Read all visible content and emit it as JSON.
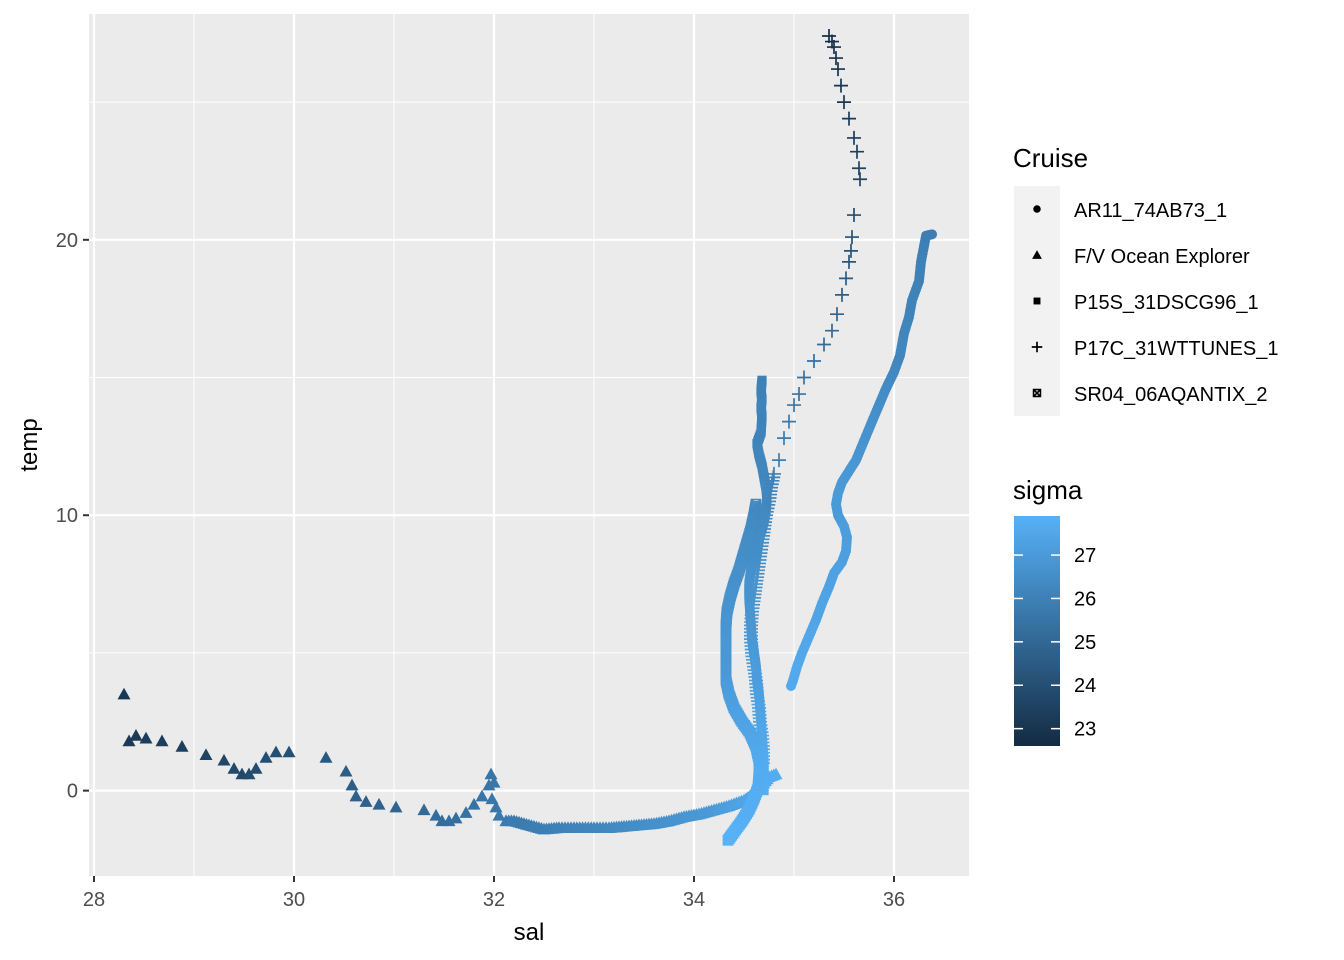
{
  "chart_data": {
    "type": "scatter",
    "title": "",
    "xlabel": "sal",
    "ylabel": "temp",
    "xlim": [
      27.95,
      36.75
    ],
    "ylim": [
      -3.1,
      28.2
    ],
    "x_ticks": [
      28,
      30,
      32,
      34,
      36
    ],
    "y_ticks": [
      0,
      10,
      20
    ],
    "x_tick_labels": [
      "28",
      "30",
      "32",
      "34",
      "36"
    ],
    "y_tick_labels": [
      "0",
      "10",
      "20"
    ],
    "grid": true,
    "shape_legend": {
      "title": "Cruise",
      "entries": [
        {
          "label": "AR11_74AB73_1",
          "shape": "circle"
        },
        {
          "label": "F/V Ocean Explorer",
          "shape": "triangle"
        },
        {
          "label": "P15S_31DSCG96_1",
          "shape": "square"
        },
        {
          "label": "P17C_31WTTUNES_1",
          "shape": "plus"
        },
        {
          "label": "SR04_06AQANTIX_2",
          "shape": "boxed-x"
        }
      ]
    },
    "color_legend": {
      "title": "sigma",
      "min": 22.6,
      "max": 27.9,
      "breaks": [
        23,
        24,
        25,
        26,
        27
      ],
      "break_labels": [
        "23",
        "24",
        "25",
        "26",
        "27"
      ],
      "low_color": "#132B43",
      "high_color": "#56B1F7"
    },
    "series": [
      {
        "name": "AR11_74AB73_1",
        "shape": "circle",
        "points": [
          [
            36.38,
            20.2,
            25.9
          ],
          [
            36.32,
            20.15,
            25.9
          ],
          [
            36.27,
            19.2,
            26.0
          ],
          [
            36.25,
            18.5,
            26.0
          ],
          [
            36.18,
            17.8,
            26.1
          ],
          [
            36.15,
            17.2,
            26.1
          ],
          [
            36.1,
            16.6,
            26.2
          ],
          [
            36.08,
            16.2,
            26.2
          ],
          [
            36.06,
            15.8,
            26.2
          ],
          [
            36.0,
            15.2,
            26.3
          ],
          [
            35.92,
            14.6,
            26.4
          ],
          [
            35.85,
            14.0,
            26.5
          ],
          [
            35.78,
            13.4,
            26.6
          ],
          [
            35.7,
            12.7,
            26.7
          ],
          [
            35.62,
            12.0,
            26.8
          ],
          [
            35.55,
            11.6,
            26.9
          ],
          [
            35.48,
            11.2,
            26.9
          ],
          [
            35.44,
            10.8,
            27.0
          ],
          [
            35.42,
            10.4,
            27.0
          ],
          [
            35.44,
            10.0,
            27.0
          ],
          [
            35.5,
            9.6,
            27.1
          ],
          [
            35.53,
            9.2,
            27.1
          ],
          [
            35.52,
            8.7,
            27.2
          ],
          [
            35.48,
            8.3,
            27.2
          ],
          [
            35.4,
            7.9,
            27.3
          ],
          [
            35.35,
            7.4,
            27.3
          ],
          [
            35.28,
            6.8,
            27.4
          ],
          [
            35.22,
            6.2,
            27.4
          ],
          [
            35.15,
            5.6,
            27.5
          ],
          [
            35.08,
            5.0,
            27.5
          ],
          [
            35.03,
            4.5,
            27.6
          ],
          [
            34.99,
            4.0,
            27.6
          ],
          [
            34.97,
            3.8,
            27.6
          ]
        ]
      },
      {
        "name": "F/V Ocean Explorer",
        "shape": "triangle",
        "points": [
          [
            28.3,
            3.5,
            23.1
          ],
          [
            28.35,
            1.8,
            23.2
          ],
          [
            28.42,
            2.0,
            23.2
          ],
          [
            28.52,
            1.9,
            23.3
          ],
          [
            28.68,
            1.8,
            23.3
          ],
          [
            28.88,
            1.6,
            23.4
          ],
          [
            29.12,
            1.3,
            23.6
          ],
          [
            29.3,
            1.1,
            23.7
          ],
          [
            29.4,
            0.8,
            23.8
          ],
          [
            29.48,
            0.6,
            23.8
          ],
          [
            29.55,
            0.6,
            23.9
          ],
          [
            29.62,
            0.8,
            23.9
          ],
          [
            29.72,
            1.2,
            24.0
          ],
          [
            29.82,
            1.4,
            24.0
          ],
          [
            29.95,
            1.4,
            24.1
          ],
          [
            30.32,
            1.2,
            24.4
          ],
          [
            30.52,
            0.7,
            24.6
          ],
          [
            30.58,
            0.2,
            24.6
          ],
          [
            30.62,
            -0.2,
            24.7
          ],
          [
            30.72,
            -0.4,
            24.7
          ],
          [
            30.85,
            -0.5,
            24.8
          ],
          [
            31.02,
            -0.6,
            24.9
          ],
          [
            31.3,
            -0.7,
            25.1
          ],
          [
            31.42,
            -0.9,
            25.2
          ],
          [
            31.48,
            -1.1,
            25.2
          ],
          [
            31.55,
            -1.1,
            25.3
          ],
          [
            31.62,
            -1.0,
            25.3
          ],
          [
            31.72,
            -0.8,
            25.4
          ],
          [
            31.8,
            -0.5,
            25.4
          ],
          [
            31.88,
            -0.2,
            25.5
          ],
          [
            31.95,
            0.2,
            25.5
          ],
          [
            31.97,
            0.6,
            25.5
          ],
          [
            32.0,
            0.3,
            25.6
          ],
          [
            31.98,
            -0.3,
            25.6
          ],
          [
            32.02,
            -0.6,
            25.6
          ],
          [
            32.05,
            -0.9,
            25.7
          ],
          [
            32.12,
            -1.1,
            25.7
          ],
          [
            32.2,
            -1.1,
            25.8
          ],
          [
            32.3,
            -1.2,
            25.8
          ],
          [
            32.4,
            -1.3,
            25.9
          ],
          [
            32.5,
            -1.4,
            25.9
          ],
          [
            32.65,
            -1.35,
            26.0
          ],
          [
            32.8,
            -1.35,
            26.1
          ],
          [
            33.0,
            -1.35,
            26.2
          ],
          [
            33.15,
            -1.35,
            26.3
          ],
          [
            33.3,
            -1.3,
            26.4
          ],
          [
            33.45,
            -1.25,
            26.5
          ],
          [
            33.6,
            -1.2,
            26.6
          ],
          [
            33.75,
            -1.1,
            26.7
          ],
          [
            33.9,
            -0.95,
            26.8
          ],
          [
            34.05,
            -0.85,
            26.9
          ],
          [
            34.2,
            -0.7,
            27.0
          ],
          [
            34.35,
            -0.55,
            27.2
          ],
          [
            34.5,
            -0.35,
            27.4
          ],
          [
            34.6,
            -0.1,
            27.5
          ],
          [
            34.68,
            0.2,
            27.6
          ],
          [
            34.75,
            0.5,
            27.7
          ],
          [
            34.82,
            0.6,
            27.7
          ]
        ]
      },
      {
        "name": "P15S_31DSCG96_1",
        "shape": "square",
        "points": [
          [
            34.68,
            14.9,
            26.0
          ],
          [
            34.67,
            14.5,
            26.0
          ],
          [
            34.68,
            14.2,
            26.0
          ],
          [
            34.67,
            13.9,
            26.1
          ],
          [
            34.68,
            13.6,
            26.1
          ],
          [
            34.67,
            13.0,
            26.1
          ],
          [
            34.63,
            12.6,
            26.1
          ],
          [
            34.65,
            12.2,
            26.2
          ],
          [
            34.68,
            11.8,
            26.2
          ],
          [
            34.7,
            11.4,
            26.2
          ],
          [
            34.72,
            11.0,
            26.3
          ],
          [
            34.73,
            10.6,
            26.3
          ],
          [
            34.72,
            10.2,
            26.3
          ],
          [
            34.7,
            9.8,
            26.4
          ],
          [
            34.67,
            9.4,
            26.4
          ],
          [
            34.63,
            9.0,
            26.5
          ],
          [
            34.6,
            8.5,
            26.5
          ],
          [
            34.57,
            8.0,
            26.6
          ],
          [
            34.55,
            7.5,
            26.7
          ],
          [
            34.55,
            7.0,
            26.7
          ],
          [
            34.56,
            6.5,
            26.8
          ],
          [
            34.57,
            6.0,
            26.8
          ],
          [
            34.58,
            5.5,
            26.9
          ],
          [
            34.6,
            5.0,
            26.9
          ],
          [
            34.62,
            4.5,
            27.0
          ],
          [
            34.63,
            4.0,
            27.1
          ],
          [
            34.65,
            3.5,
            27.2
          ],
          [
            34.66,
            3.0,
            27.3
          ],
          [
            34.67,
            2.5,
            27.4
          ],
          [
            34.68,
            2.0,
            27.5
          ],
          [
            34.69,
            1.5,
            27.6
          ],
          [
            34.7,
            1.0,
            27.7
          ],
          [
            34.7,
            0.5,
            27.7
          ],
          [
            34.7,
            0.0,
            27.8
          ]
        ]
      },
      {
        "name": "P17C_31WTTUNES_1",
        "shape": "plus",
        "points": [
          [
            35.35,
            27.4,
            22.8
          ],
          [
            35.38,
            27.2,
            22.8
          ],
          [
            35.4,
            27.0,
            22.8
          ],
          [
            35.42,
            26.6,
            22.9
          ],
          [
            35.44,
            26.2,
            22.9
          ],
          [
            35.47,
            25.6,
            23.0
          ],
          [
            35.5,
            25.0,
            23.1
          ],
          [
            35.55,
            24.4,
            23.2
          ],
          [
            35.6,
            23.7,
            23.3
          ],
          [
            35.63,
            23.2,
            23.4
          ],
          [
            35.65,
            22.6,
            23.5
          ],
          [
            35.66,
            22.2,
            23.6
          ],
          [
            35.6,
            20.9,
            23.9
          ],
          [
            35.58,
            20.1,
            24.1
          ],
          [
            35.57,
            19.6,
            24.2
          ],
          [
            35.55,
            19.2,
            24.3
          ],
          [
            35.52,
            18.6,
            24.5
          ],
          [
            35.48,
            18.0,
            24.6
          ],
          [
            35.43,
            17.3,
            24.8
          ],
          [
            35.38,
            16.7,
            25.0
          ],
          [
            35.3,
            16.2,
            25.1
          ],
          [
            35.2,
            15.6,
            25.3
          ],
          [
            35.1,
            15.0,
            25.4
          ],
          [
            35.05,
            14.4,
            25.5
          ],
          [
            35.0,
            14.0,
            25.6
          ],
          [
            34.95,
            13.4,
            25.7
          ],
          [
            34.9,
            12.8,
            25.8
          ],
          [
            34.85,
            12.0,
            25.9
          ],
          [
            34.8,
            11.5,
            26.0
          ],
          [
            34.77,
            11.0,
            26.1
          ],
          [
            34.75,
            10.5,
            26.2
          ],
          [
            34.72,
            10.0,
            26.3
          ],
          [
            34.7,
            9.5,
            26.4
          ],
          [
            34.68,
            9.0,
            26.5
          ],
          [
            34.66,
            8.5,
            26.5
          ],
          [
            34.64,
            8.0,
            26.6
          ],
          [
            34.62,
            7.5,
            26.7
          ],
          [
            34.6,
            7.0,
            26.7
          ],
          [
            34.58,
            6.5,
            26.8
          ],
          [
            34.57,
            6.0,
            26.9
          ],
          [
            34.57,
            5.5,
            26.9
          ],
          [
            34.58,
            5.0,
            27.0
          ],
          [
            34.6,
            4.5,
            27.1
          ],
          [
            34.62,
            4.0,
            27.1
          ],
          [
            34.63,
            3.5,
            27.2
          ],
          [
            34.65,
            3.0,
            27.3
          ],
          [
            34.66,
            2.5,
            27.4
          ],
          [
            34.68,
            2.0,
            27.5
          ],
          [
            34.69,
            1.5,
            27.6
          ],
          [
            34.69,
            1.0,
            27.7
          ]
        ]
      },
      {
        "name": "SR04_06AQANTIX_2",
        "shape": "boxed-x",
        "points": [
          [
            34.62,
            10.4,
            26.3
          ],
          [
            34.6,
            10.0,
            26.3
          ],
          [
            34.57,
            9.5,
            26.4
          ],
          [
            34.53,
            9.0,
            26.5
          ],
          [
            34.49,
            8.5,
            26.5
          ],
          [
            34.45,
            8.0,
            26.6
          ],
          [
            34.4,
            7.5,
            26.6
          ],
          [
            34.36,
            7.0,
            26.7
          ],
          [
            34.33,
            6.5,
            26.7
          ],
          [
            34.32,
            6.0,
            26.8
          ],
          [
            34.32,
            5.5,
            26.8
          ],
          [
            34.32,
            5.0,
            26.9
          ],
          [
            34.32,
            4.5,
            26.9
          ],
          [
            34.32,
            4.0,
            27.0
          ],
          [
            34.35,
            3.5,
            27.1
          ],
          [
            34.4,
            3.0,
            27.2
          ],
          [
            34.48,
            2.5,
            27.3
          ],
          [
            34.56,
            2.1,
            27.4
          ],
          [
            34.62,
            1.6,
            27.5
          ],
          [
            34.65,
            1.1,
            27.6
          ],
          [
            34.65,
            0.6,
            27.7
          ],
          [
            34.64,
            0.1,
            27.7
          ],
          [
            34.6,
            -0.3,
            27.8
          ],
          [
            34.55,
            -0.7,
            27.8
          ],
          [
            34.48,
            -1.1,
            27.8
          ],
          [
            34.4,
            -1.5,
            27.9
          ],
          [
            34.34,
            -1.8,
            27.9
          ]
        ]
      }
    ]
  }
}
